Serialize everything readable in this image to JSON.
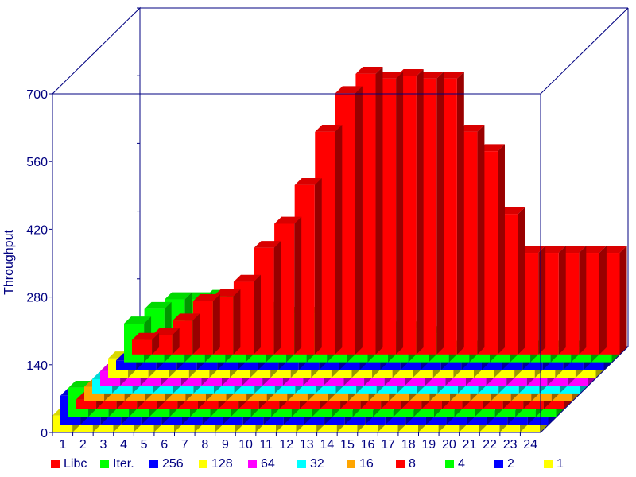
{
  "chart_data": {
    "type": "bar",
    "view": "3d-stacked-rows",
    "ylabel": "Throughput",
    "ylim": [
      0,
      700
    ],
    "yticks": [
      0,
      140,
      280,
      420,
      560,
      700
    ],
    "categories": [
      "1",
      "2",
      "3",
      "4",
      "5",
      "6",
      "7",
      "8",
      "9",
      "10",
      "11",
      "12",
      "13",
      "14",
      "15",
      "16",
      "17",
      "18",
      "19",
      "20",
      "21",
      "22",
      "23",
      "24"
    ],
    "series": [
      {
        "name": "Libc",
        "color": "#ff0000",
        "values": [
          30,
          40,
          70,
          110,
          120,
          150,
          220,
          270,
          350,
          460,
          540,
          580,
          570,
          575,
          570,
          570,
          460,
          420,
          290,
          210,
          210,
          210,
          210,
          210
        ]
      },
      {
        "name": "Iter.",
        "color": "#00ff00",
        "values": [
          80,
          110,
          130,
          130,
          135,
          130,
          120,
          110,
          100,
          100,
          100,
          80,
          70,
          70,
          70,
          60,
          30,
          30,
          30,
          30,
          30,
          30,
          30,
          30
        ]
      },
      {
        "name": "256",
        "color": "#0000ff",
        "values": [
          20,
          25,
          40,
          40,
          40,
          45,
          50,
          50,
          50,
          50,
          50,
          45,
          40,
          35,
          30,
          30,
          30,
          30,
          30,
          30,
          30,
          30,
          30,
          30
        ]
      },
      {
        "name": "128",
        "color": "#ffff00",
        "values": [
          40,
          45,
          50,
          50,
          50,
          50,
          50,
          50,
          55,
          55,
          55,
          55,
          55,
          55,
          55,
          50,
          40,
          35,
          35,
          35,
          35,
          35,
          35,
          35
        ]
      },
      {
        "name": "64",
        "color": "#ff00ff",
        "values": [
          30,
          30,
          30,
          35,
          40,
          40,
          45,
          45,
          50,
          50,
          55,
          55,
          55,
          55,
          55,
          50,
          40,
          35,
          35,
          35,
          35,
          35,
          35,
          35
        ]
      },
      {
        "name": "32",
        "color": "#00ffff",
        "values": [
          30,
          30,
          30,
          35,
          35,
          35,
          35,
          40,
          40,
          40,
          40,
          40,
          40,
          40,
          40,
          50,
          30,
          30,
          30,
          30,
          30,
          30,
          30,
          30
        ]
      },
      {
        "name": "16",
        "color": "#ffa500",
        "values": [
          30,
          30,
          35,
          35,
          35,
          35,
          35,
          35,
          40,
          40,
          40,
          40,
          40,
          35,
          35,
          30,
          30,
          30,
          30,
          30,
          30,
          30,
          30,
          30
        ]
      },
      {
        "name": "8",
        "color": "#ff0000",
        "values": [
          20,
          30,
          35,
          40,
          40,
          40,
          45,
          50,
          50,
          45,
          45,
          40,
          40,
          40,
          30,
          30,
          30,
          30,
          30,
          30,
          30,
          30,
          30,
          30
        ]
      },
      {
        "name": "4",
        "color": "#00ff00",
        "values": [
          60,
          70,
          60,
          60,
          60,
          60,
          60,
          60,
          60,
          55,
          55,
          55,
          50,
          30,
          30,
          25,
          25,
          25,
          25,
          25,
          25,
          25,
          25,
          25
        ]
      },
      {
        "name": "2",
        "color": "#0000ff",
        "values": [
          60,
          30,
          40,
          40,
          40,
          40,
          40,
          45,
          45,
          45,
          45,
          40,
          25,
          20,
          15,
          15,
          15,
          15,
          15,
          15,
          15,
          15,
          15,
          15
        ]
      },
      {
        "name": "1",
        "color": "#ffff00",
        "values": [
          35,
          40,
          40,
          40,
          40,
          40,
          40,
          40,
          40,
          40,
          40,
          40,
          40,
          40,
          30,
          30,
          30,
          30,
          30,
          30,
          30,
          30,
          30,
          30
        ]
      }
    ],
    "legend": {
      "position": "bottom"
    },
    "grid": false
  }
}
